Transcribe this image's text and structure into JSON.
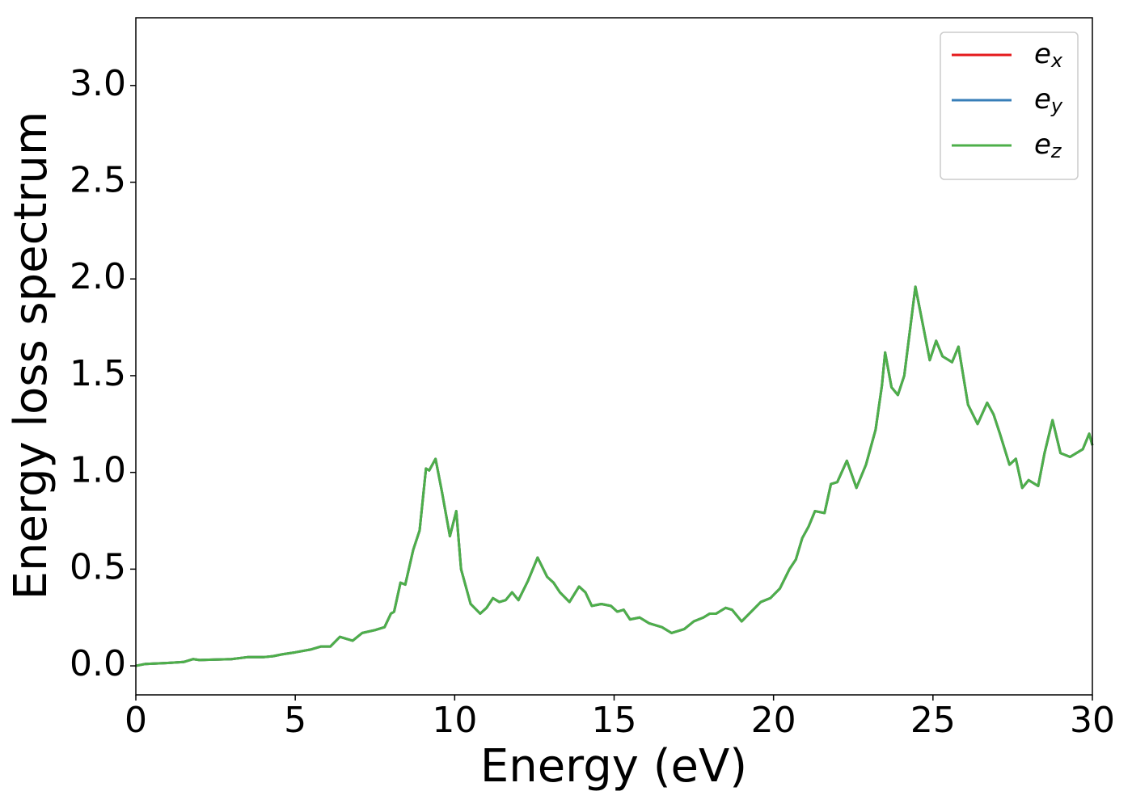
{
  "chart_data": {
    "type": "line",
    "x_label": "Energy (eV)",
    "y_label": "Energy loss spectrum",
    "x": [
      0,
      0.3,
      1.0,
      1.5,
      1.8,
      2.0,
      3.0,
      3.5,
      4.0,
      4.3,
      4.6,
      5.0,
      5.5,
      5.8,
      6.1,
      6.4,
      6.8,
      7.1,
      7.5,
      7.8,
      8.0,
      8.1,
      8.3,
      8.45,
      8.7,
      8.9,
      9.1,
      9.2,
      9.4,
      9.6,
      9.85,
      10.05,
      10.2,
      10.5,
      10.8,
      11.0,
      11.2,
      11.4,
      11.6,
      11.8,
      12.0,
      12.3,
      12.6,
      12.9,
      13.1,
      13.3,
      13.6,
      13.9,
      14.1,
      14.3,
      14.6,
      14.9,
      15.1,
      15.3,
      15.5,
      15.8,
      16.1,
      16.5,
      16.8,
      17.2,
      17.5,
      17.8,
      18.0,
      18.2,
      18.5,
      18.7,
      19.0,
      19.3,
      19.6,
      19.9,
      20.2,
      20.5,
      20.7,
      20.9,
      21.1,
      21.3,
      21.6,
      21.8,
      22.0,
      22.3,
      22.6,
      22.9,
      23.2,
      23.4,
      23.5,
      23.7,
      23.9,
      24.1,
      24.45,
      24.7,
      24.9,
      25.1,
      25.3,
      25.6,
      25.8,
      26.1,
      26.4,
      26.7,
      26.9,
      27.1,
      27.4,
      27.6,
      27.8,
      28.0,
      28.3,
      28.5,
      28.75,
      29.0,
      29.3,
      29.7,
      29.9,
      30.0
    ],
    "series": [
      {
        "name": "ex",
        "color": "#e41a1c",
        "values": [
          0.0,
          0.01,
          0.015,
          0.02,
          0.035,
          0.03,
          0.035,
          0.045,
          0.045,
          0.05,
          0.06,
          0.07,
          0.085,
          0.1,
          0.1,
          0.15,
          0.13,
          0.17,
          0.185,
          0.2,
          0.27,
          0.28,
          0.43,
          0.42,
          0.6,
          0.7,
          1.02,
          1.01,
          1.07,
          0.9,
          0.67,
          0.8,
          0.5,
          0.32,
          0.27,
          0.3,
          0.35,
          0.33,
          0.34,
          0.38,
          0.34,
          0.44,
          0.56,
          0.46,
          0.43,
          0.38,
          0.33,
          0.41,
          0.38,
          0.31,
          0.32,
          0.31,
          0.28,
          0.29,
          0.24,
          0.25,
          0.22,
          0.2,
          0.17,
          0.19,
          0.23,
          0.25,
          0.27,
          0.27,
          0.3,
          0.29,
          0.23,
          0.28,
          0.33,
          0.35,
          0.4,
          0.5,
          0.55,
          0.66,
          0.72,
          0.8,
          0.79,
          0.94,
          0.95,
          1.06,
          0.92,
          1.04,
          1.22,
          1.45,
          1.62,
          1.44,
          1.4,
          1.5,
          1.96,
          1.75,
          1.58,
          1.68,
          1.6,
          1.57,
          1.65,
          1.35,
          1.25,
          1.36,
          1.3,
          1.2,
          1.04,
          1.07,
          0.92,
          0.96,
          0.93,
          1.1,
          1.27,
          1.1,
          1.08,
          1.12,
          1.2,
          1.14
        ]
      },
      {
        "name": "ey",
        "color": "#377eb8",
        "values": [
          0.0,
          0.01,
          0.015,
          0.02,
          0.035,
          0.03,
          0.035,
          0.045,
          0.045,
          0.05,
          0.06,
          0.07,
          0.085,
          0.1,
          0.1,
          0.15,
          0.13,
          0.17,
          0.185,
          0.2,
          0.27,
          0.28,
          0.43,
          0.42,
          0.6,
          0.7,
          1.02,
          1.01,
          1.07,
          0.9,
          0.67,
          0.8,
          0.5,
          0.32,
          0.27,
          0.3,
          0.35,
          0.33,
          0.34,
          0.38,
          0.34,
          0.44,
          0.56,
          0.46,
          0.43,
          0.38,
          0.33,
          0.41,
          0.38,
          0.31,
          0.32,
          0.31,
          0.28,
          0.29,
          0.24,
          0.25,
          0.22,
          0.2,
          0.17,
          0.19,
          0.23,
          0.25,
          0.27,
          0.27,
          0.3,
          0.29,
          0.23,
          0.28,
          0.33,
          0.35,
          0.4,
          0.5,
          0.55,
          0.66,
          0.72,
          0.8,
          0.79,
          0.94,
          0.95,
          1.06,
          0.92,
          1.04,
          1.22,
          1.45,
          1.62,
          1.44,
          1.4,
          1.5,
          1.96,
          1.75,
          1.58,
          1.68,
          1.6,
          1.57,
          1.65,
          1.35,
          1.25,
          1.36,
          1.3,
          1.2,
          1.04,
          1.07,
          0.92,
          0.96,
          0.93,
          1.1,
          1.27,
          1.1,
          1.08,
          1.12,
          1.2,
          1.14
        ]
      },
      {
        "name": "ez",
        "color": "#4daf4a",
        "values": [
          0.0,
          0.01,
          0.015,
          0.02,
          0.035,
          0.03,
          0.035,
          0.045,
          0.045,
          0.05,
          0.06,
          0.07,
          0.085,
          0.1,
          0.1,
          0.15,
          0.13,
          0.17,
          0.185,
          0.2,
          0.27,
          0.28,
          0.43,
          0.42,
          0.6,
          0.7,
          1.02,
          1.01,
          1.07,
          0.9,
          0.67,
          0.8,
          0.5,
          0.32,
          0.27,
          0.3,
          0.35,
          0.33,
          0.34,
          0.38,
          0.34,
          0.44,
          0.56,
          0.46,
          0.43,
          0.38,
          0.33,
          0.41,
          0.38,
          0.31,
          0.32,
          0.31,
          0.28,
          0.29,
          0.24,
          0.25,
          0.22,
          0.2,
          0.17,
          0.19,
          0.23,
          0.25,
          0.27,
          0.27,
          0.3,
          0.29,
          0.23,
          0.28,
          0.33,
          0.35,
          0.4,
          0.5,
          0.55,
          0.66,
          0.72,
          0.8,
          0.79,
          0.94,
          0.95,
          1.06,
          0.92,
          1.04,
          1.22,
          1.45,
          1.62,
          1.44,
          1.4,
          1.5,
          1.96,
          1.75,
          1.58,
          1.68,
          1.6,
          1.57,
          1.65,
          1.35,
          1.25,
          1.36,
          1.3,
          1.2,
          1.04,
          1.07,
          0.92,
          0.96,
          0.93,
          1.1,
          1.27,
          1.1,
          1.08,
          1.12,
          1.2,
          1.14
        ]
      }
    ],
    "xlim": [
      0,
      30
    ],
    "xticks": [
      0,
      5,
      10,
      15,
      20,
      25,
      30
    ],
    "ylim": [
      -0.15,
      3.35
    ],
    "yticks": [
      {
        "value": 0,
        "label": "0.0"
      },
      0.5,
      {
        "value": 1,
        "label": "1.0"
      },
      1.5,
      {
        "value": 2,
        "label": "2.0"
      },
      2.5,
      {
        "value": 3,
        "label": "3.0"
      }
    ],
    "grid": false,
    "legend": "upper right"
  }
}
